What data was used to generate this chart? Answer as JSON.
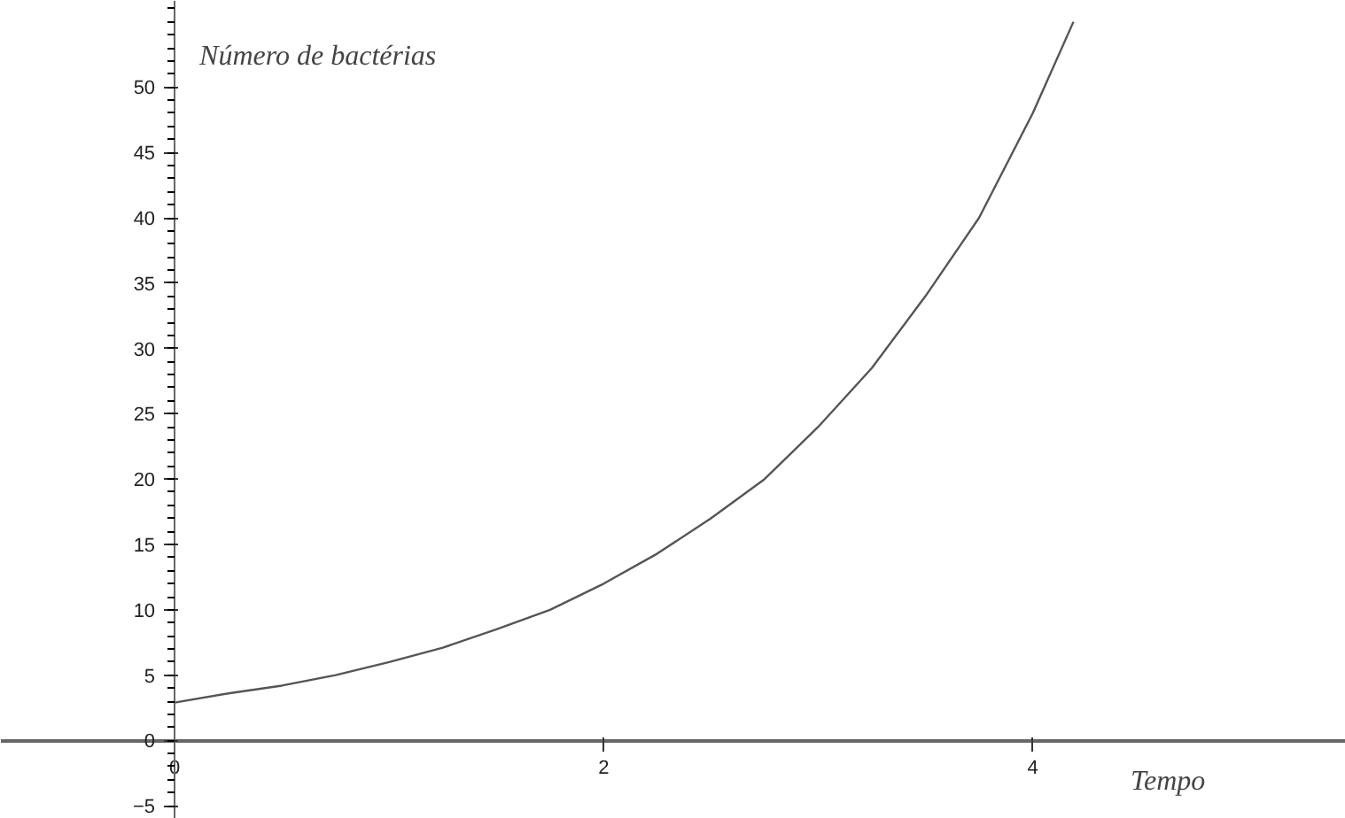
{
  "chart_data": {
    "type": "line",
    "xlabel": "Tempo",
    "ylabel": "Número de bactérias",
    "xlim": [
      -0.81,
      5.46
    ],
    "ylim": [
      -6,
      56.6
    ],
    "xticks": [
      0,
      2,
      4
    ],
    "yticks": [
      -5,
      0,
      5,
      10,
      15,
      20,
      25,
      30,
      35,
      40,
      45,
      50
    ],
    "grid": false,
    "marker": "none",
    "line_style": "solid",
    "series": [
      {
        "color": "#555555",
        "x": [
          0,
          0.25,
          0.5,
          0.75,
          1,
          1.25,
          1.5,
          1.75,
          2,
          2.25,
          2.5,
          2.75,
          3,
          3.25,
          3.5,
          3.75,
          4,
          4.19
        ],
        "values": [
          2.9,
          3.6,
          4.2,
          5,
          6,
          7.1,
          8.5,
          10,
          12,
          14.3,
          17,
          20,
          24,
          28.5,
          34,
          40,
          48,
          55
        ]
      }
    ]
  }
}
